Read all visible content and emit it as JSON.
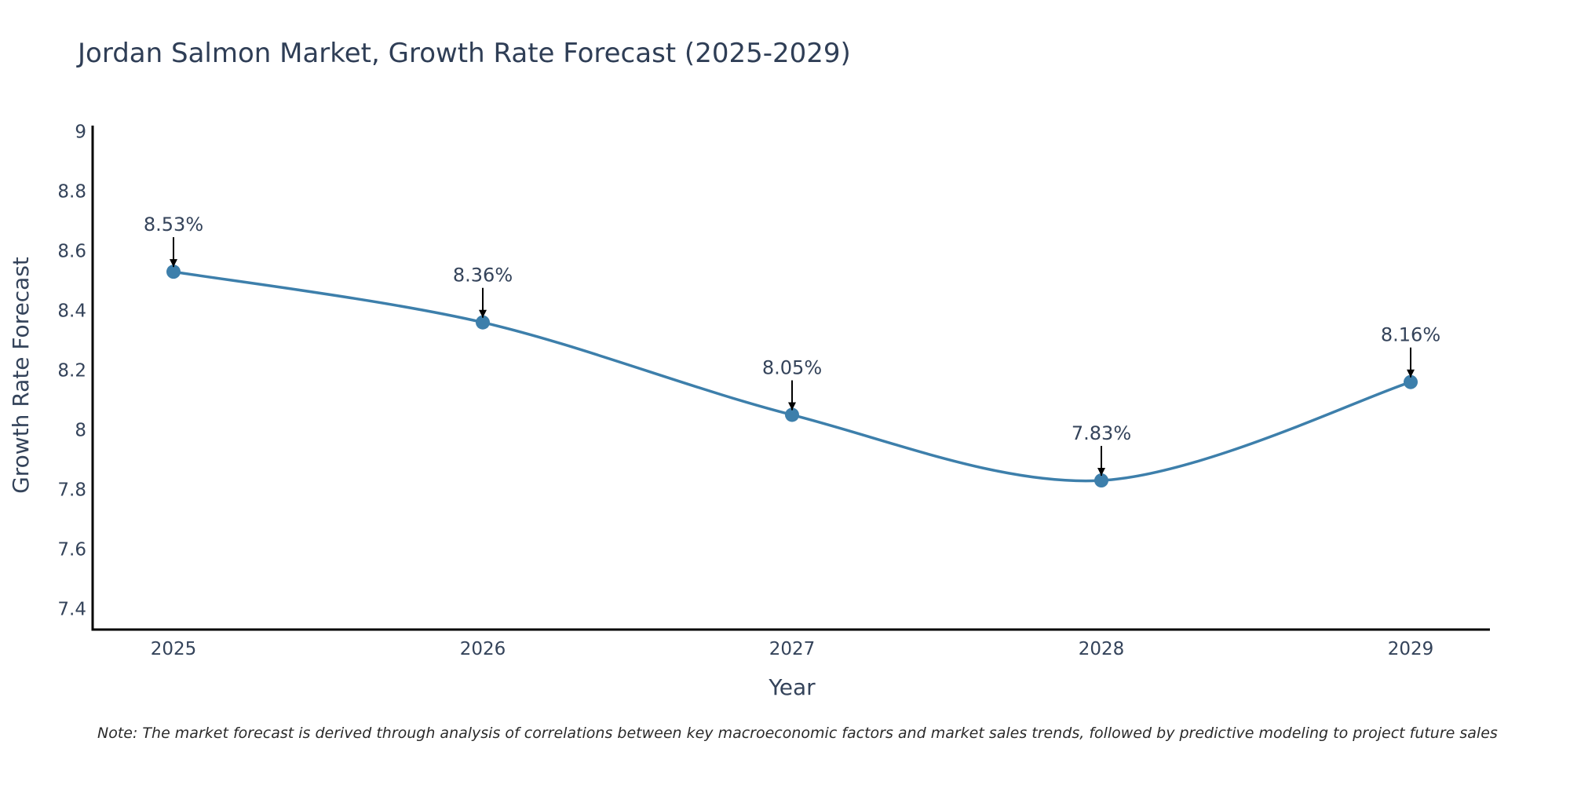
{
  "chart_data": {
    "type": "line",
    "title": "Jordan Salmon Market, Growth Rate Forecast (2025-2029)",
    "xlabel": "Year",
    "ylabel": "Growth Rate Forecast",
    "categories": [
      "2025",
      "2026",
      "2027",
      "2028",
      "2029"
    ],
    "values": [
      8.53,
      8.36,
      8.05,
      7.83,
      8.16
    ],
    "data_labels": [
      "8.53%",
      "8.36%",
      "8.05%",
      "7.83%",
      "8.16%"
    ],
    "ylim": [
      7.33,
      9.02
    ],
    "yticks": [
      7.4,
      7.6,
      7.8,
      8,
      8.2,
      8.4,
      8.6,
      8.8,
      9
    ],
    "ytick_labels": [
      "7.4",
      "7.6",
      "7.8",
      "8",
      "8.2",
      "8.4",
      "8.6",
      "8.8",
      "9"
    ],
    "line_shape": "spline",
    "grid": false,
    "line_color": "#3d7fab",
    "marker_color": "#3d7fab",
    "note": "Note: The market forecast is derived through analysis of correlations between key macroeconomic factors and market sales trends, followed by predictive modeling to project future sales"
  }
}
